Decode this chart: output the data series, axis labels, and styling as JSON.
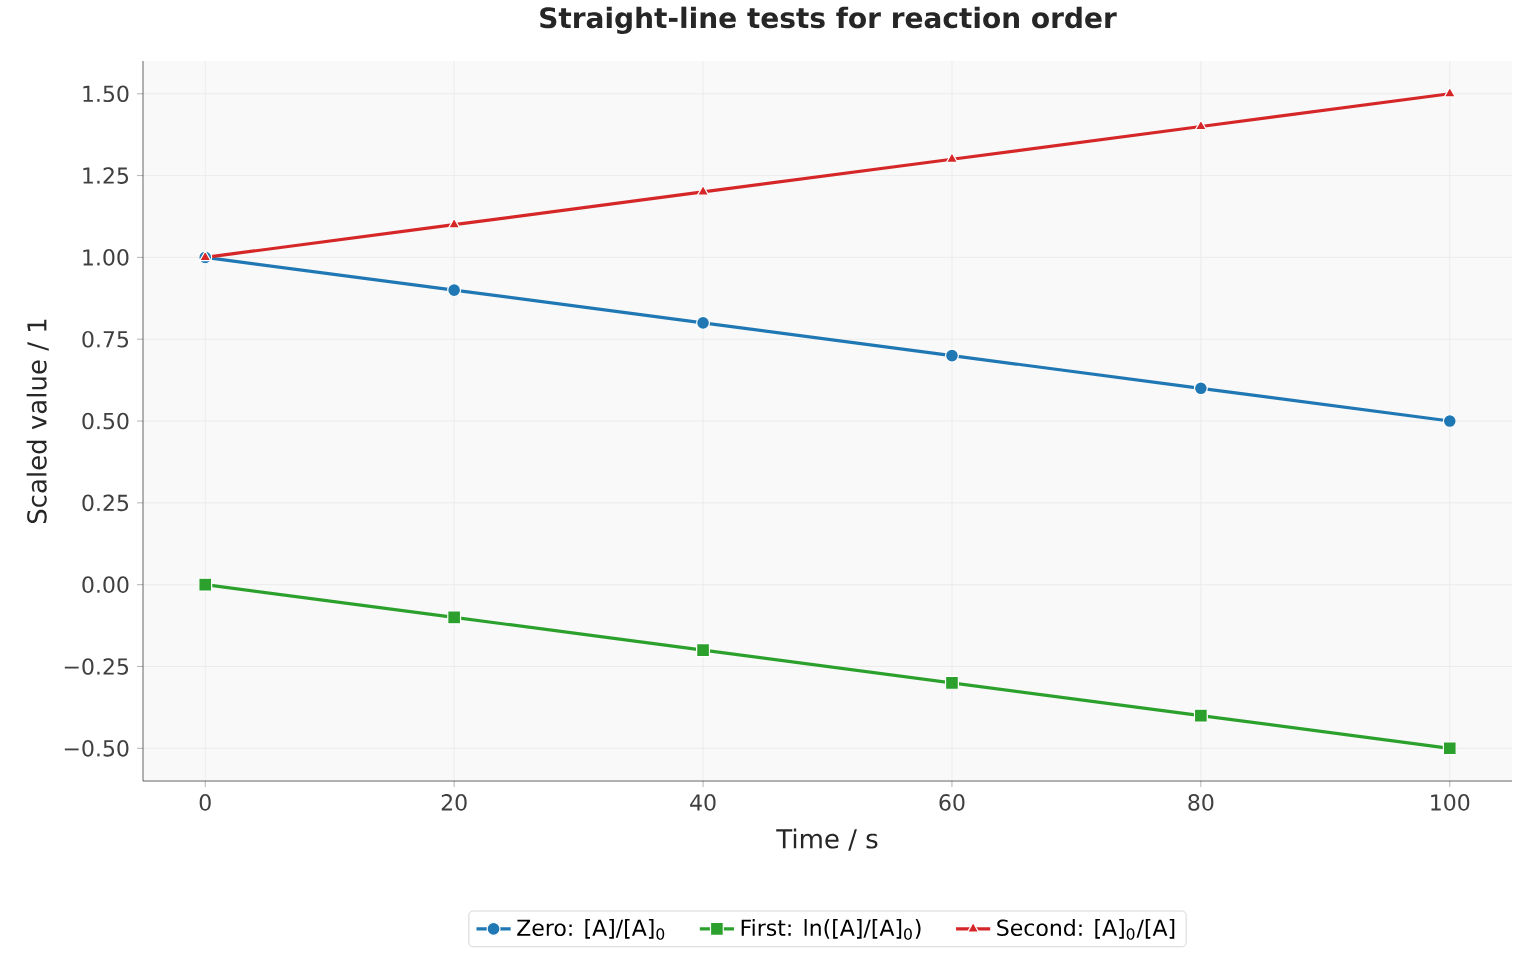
{
  "chart_data": {
    "type": "line",
    "title": "Straight-line tests for reaction order",
    "xlabel": "Time / s",
    "ylabel": "Scaled value / 1",
    "x": [
      0,
      20,
      40,
      60,
      80,
      100
    ],
    "series": [
      {
        "name": "Zero: [A]/[A]$_{0}$",
        "color": "#1f77b4",
        "marker": "circle",
        "values": [
          1.0,
          0.9,
          0.8,
          0.7,
          0.6,
          0.5
        ]
      },
      {
        "name": "First: ln([A]/[A]$_{0}$)",
        "color": "#2ca02c",
        "marker": "square",
        "values": [
          0.0,
          -0.1,
          -0.2,
          -0.3,
          -0.4,
          -0.5
        ]
      },
      {
        "name": "Second: [A]$_{0}$/[A]",
        "color": "#d62728",
        "marker": "triangle",
        "values": [
          1.0,
          1.1,
          1.2,
          1.3,
          1.4,
          1.5
        ]
      }
    ],
    "xlim": [
      -5,
      105
    ],
    "ylim": [
      -0.6,
      1.6
    ],
    "xticks": [
      0,
      20,
      40,
      60,
      80,
      100
    ],
    "yticks": [
      {
        "value": -0.5,
        "label": "−0.50"
      },
      {
        "value": -0.25,
        "label": "−0.25"
      },
      {
        "value": 0,
        "label": "0.00"
      },
      {
        "value": 0.25,
        "label": "0.25"
      },
      {
        "value": 0.5,
        "label": "0.50"
      },
      {
        "value": 0.75,
        "label": "0.75"
      },
      {
        "value": 1.0,
        "label": "1.00"
      },
      {
        "value": 1.25,
        "label": "1.25"
      },
      {
        "value": 1.5,
        "label": "1.50"
      }
    ],
    "grid": true,
    "legend": "bottom",
    "line_style": "solid"
  }
}
